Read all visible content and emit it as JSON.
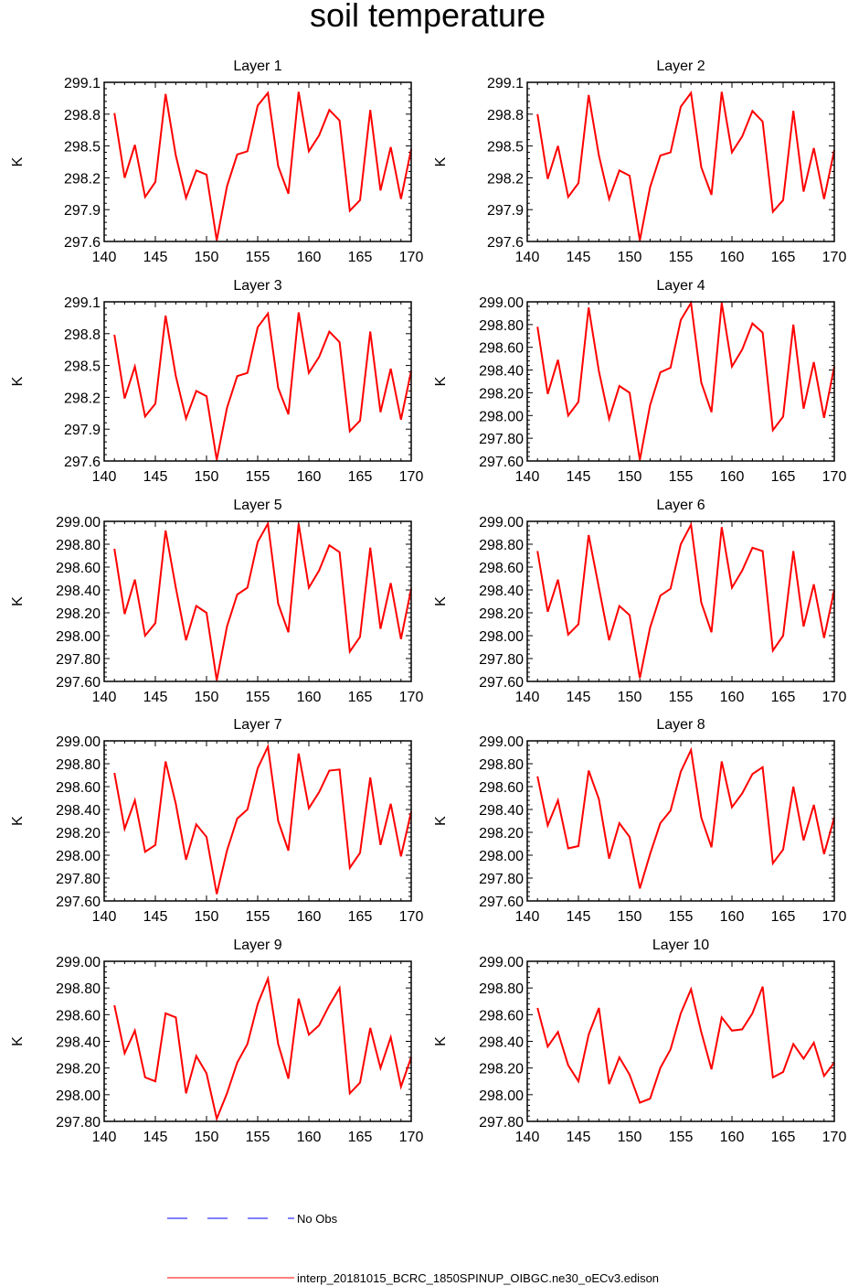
{
  "title": "soil temperature",
  "colors": {
    "model": "#ff0000",
    "obs": "#0000ff",
    "axis": "#000000"
  },
  "legend": {
    "obs_label": "No Obs",
    "model_label": "interp_20181015_BCRC_1850SPINUP_OIBGC.ne30_oECv3.edison"
  },
  "chart_data": [
    {
      "type": "line",
      "title": "Layer 1",
      "ylabel": "K",
      "xlim": [
        140,
        170
      ],
      "ylim": [
        297.6,
        299.1
      ],
      "xticks": [
        140,
        145,
        150,
        155,
        160,
        165,
        170
      ],
      "xtick_labels": [
        "140",
        "145",
        "150",
        "155",
        "160",
        "165",
        "170"
      ],
      "yticks": [
        297.6,
        297.9,
        298.2,
        298.5,
        298.8,
        299.1
      ],
      "ytick_labels": [
        "297.6",
        "297.9",
        "298.2",
        "298.5",
        "298.8",
        "299.1"
      ],
      "x": [
        141,
        142,
        143,
        144,
        145,
        146,
        147,
        148,
        149,
        150,
        151,
        152,
        153,
        154,
        155,
        156,
        157,
        158,
        159,
        160,
        161,
        162,
        163,
        164,
        165,
        166,
        167,
        168,
        169,
        170
      ],
      "series": [
        {
          "name": "interp_20181015_BCRC_1850SPINUP_OIBGC.ne30_oECv3.edison",
          "values": [
            298.81,
            298.2,
            298.51,
            298.02,
            298.16,
            298.99,
            298.41,
            298.01,
            298.27,
            298.23,
            297.61,
            298.12,
            298.42,
            298.45,
            298.88,
            299.0,
            298.31,
            298.05,
            299.01,
            298.45,
            298.6,
            298.84,
            298.74,
            297.89,
            297.99,
            298.84,
            298.08,
            298.49,
            298.0,
            298.47
          ]
        }
      ]
    },
    {
      "type": "line",
      "title": "Layer 2",
      "ylabel": "K",
      "xlim": [
        140,
        170
      ],
      "ylim": [
        297.6,
        299.1
      ],
      "xticks": [
        140,
        145,
        150,
        155,
        160,
        165,
        170
      ],
      "xtick_labels": [
        "140",
        "145",
        "150",
        "155",
        "160",
        "165",
        "170"
      ],
      "yticks": [
        297.6,
        297.9,
        298.2,
        298.5,
        298.8,
        299.1
      ],
      "ytick_labels": [
        "297.6",
        "297.9",
        "298.2",
        "298.5",
        "298.8",
        "299.1"
      ],
      "x": [
        141,
        142,
        143,
        144,
        145,
        146,
        147,
        148,
        149,
        150,
        151,
        152,
        153,
        154,
        155,
        156,
        157,
        158,
        159,
        160,
        161,
        162,
        163,
        164,
        165,
        166,
        167,
        168,
        169,
        170
      ],
      "series": [
        {
          "name": "interp_20181015_BCRC_1850SPINUP_OIBGC.ne30_oECv3.edison",
          "values": [
            298.8,
            298.19,
            298.5,
            298.02,
            298.15,
            298.98,
            298.41,
            298.0,
            298.27,
            298.22,
            297.61,
            298.11,
            298.41,
            298.44,
            298.87,
            299.0,
            298.3,
            298.04,
            299.01,
            298.44,
            298.59,
            298.83,
            298.73,
            297.88,
            297.99,
            298.83,
            298.07,
            298.48,
            298.0,
            298.46
          ]
        }
      ]
    },
    {
      "type": "line",
      "title": "Layer 3",
      "ylabel": "K",
      "xlim": [
        140,
        170
      ],
      "ylim": [
        297.6,
        299.1
      ],
      "xticks": [
        140,
        145,
        150,
        155,
        160,
        165,
        170
      ],
      "xtick_labels": [
        "140",
        "145",
        "150",
        "155",
        "160",
        "165",
        "170"
      ],
      "yticks": [
        297.6,
        297.9,
        298.2,
        298.5,
        298.8,
        299.1
      ],
      "ytick_labels": [
        "297.6",
        "297.9",
        "298.2",
        "298.5",
        "298.8",
        "299.1"
      ],
      "x": [
        141,
        142,
        143,
        144,
        145,
        146,
        147,
        148,
        149,
        150,
        151,
        152,
        153,
        154,
        155,
        156,
        157,
        158,
        159,
        160,
        161,
        162,
        163,
        164,
        165,
        166,
        167,
        168,
        169,
        170
      ],
      "series": [
        {
          "name": "interp_20181015_BCRC_1850SPINUP_OIBGC.ne30_oECv3.edison",
          "values": [
            298.79,
            298.19,
            298.49,
            298.02,
            298.14,
            298.97,
            298.4,
            298.0,
            298.26,
            298.21,
            297.61,
            298.1,
            298.4,
            298.43,
            298.86,
            298.99,
            298.29,
            298.04,
            299.0,
            298.43,
            298.58,
            298.82,
            298.72,
            297.88,
            297.98,
            298.82,
            298.06,
            298.47,
            297.99,
            298.45
          ]
        }
      ]
    },
    {
      "type": "line",
      "title": "Layer 4",
      "ylabel": "K",
      "xlim": [
        140,
        170
      ],
      "ylim": [
        297.6,
        299.0
      ],
      "xticks": [
        140,
        145,
        150,
        155,
        160,
        165,
        170
      ],
      "xtick_labels": [
        "140",
        "145",
        "150",
        "155",
        "160",
        "165",
        "170"
      ],
      "yticks": [
        297.6,
        297.8,
        298.0,
        298.2,
        298.4,
        298.6,
        298.8,
        299.0
      ],
      "ytick_labels": [
        "297.60",
        "297.80",
        "298.00",
        "298.20",
        "298.40",
        "298.60",
        "298.80",
        "299.00"
      ],
      "x": [
        141,
        142,
        143,
        144,
        145,
        146,
        147,
        148,
        149,
        150,
        151,
        152,
        153,
        154,
        155,
        156,
        157,
        158,
        159,
        160,
        161,
        162,
        163,
        164,
        165,
        166,
        167,
        168,
        169,
        170
      ],
      "series": [
        {
          "name": "interp_20181015_BCRC_1850SPINUP_OIBGC.ne30_oECv3.edison",
          "values": [
            298.78,
            298.19,
            298.49,
            298.0,
            298.12,
            298.95,
            298.39,
            297.97,
            298.26,
            298.2,
            297.61,
            298.09,
            298.38,
            298.42,
            298.84,
            298.99,
            298.29,
            298.03,
            298.99,
            298.43,
            298.58,
            298.81,
            298.73,
            297.87,
            297.99,
            298.8,
            298.06,
            298.47,
            297.98,
            298.43
          ]
        }
      ]
    },
    {
      "type": "line",
      "title": "Layer 5",
      "ylabel": "K",
      "xlim": [
        140,
        170
      ],
      "ylim": [
        297.6,
        299.0
      ],
      "xticks": [
        140,
        145,
        150,
        155,
        160,
        165,
        170
      ],
      "xtick_labels": [
        "140",
        "145",
        "150",
        "155",
        "160",
        "165",
        "170"
      ],
      "yticks": [
        297.6,
        297.8,
        298.0,
        298.2,
        298.4,
        298.6,
        298.8,
        299.0
      ],
      "ytick_labels": [
        "297.60",
        "297.80",
        "298.00",
        "298.20",
        "298.40",
        "298.60",
        "298.80",
        "299.00"
      ],
      "x": [
        141,
        142,
        143,
        144,
        145,
        146,
        147,
        148,
        149,
        150,
        151,
        152,
        153,
        154,
        155,
        156,
        157,
        158,
        159,
        160,
        161,
        162,
        163,
        164,
        165,
        166,
        167,
        168,
        169,
        170
      ],
      "series": [
        {
          "name": "interp_20181015_BCRC_1850SPINUP_OIBGC.ne30_oECv3.edison",
          "values": [
            298.76,
            298.19,
            298.49,
            298.0,
            298.11,
            298.92,
            298.42,
            297.96,
            298.26,
            298.2,
            297.61,
            298.08,
            298.36,
            298.42,
            298.82,
            298.98,
            298.28,
            298.03,
            298.98,
            298.42,
            298.57,
            298.79,
            298.73,
            297.86,
            297.99,
            298.77,
            298.06,
            298.46,
            297.97,
            298.41
          ]
        }
      ]
    },
    {
      "type": "line",
      "title": "Layer 6",
      "ylabel": "K",
      "xlim": [
        140,
        170
      ],
      "ylim": [
        297.6,
        299.0
      ],
      "xticks": [
        140,
        145,
        150,
        155,
        160,
        165,
        170
      ],
      "xtick_labels": [
        "140",
        "145",
        "150",
        "155",
        "160",
        "165",
        "170"
      ],
      "yticks": [
        297.6,
        297.8,
        298.0,
        298.2,
        298.4,
        298.6,
        298.8,
        299.0
      ],
      "ytick_labels": [
        "297.60",
        "297.80",
        "298.00",
        "298.20",
        "298.40",
        "298.60",
        "298.80",
        "299.00"
      ],
      "x": [
        141,
        142,
        143,
        144,
        145,
        146,
        147,
        148,
        149,
        150,
        151,
        152,
        153,
        154,
        155,
        156,
        157,
        158,
        159,
        160,
        161,
        162,
        163,
        164,
        165,
        166,
        167,
        168,
        169,
        170
      ],
      "series": [
        {
          "name": "interp_20181015_BCRC_1850SPINUP_OIBGC.ne30_oECv3.edison",
          "values": [
            298.74,
            298.21,
            298.49,
            298.01,
            298.1,
            298.88,
            298.42,
            297.96,
            298.26,
            298.18,
            297.63,
            298.07,
            298.35,
            298.41,
            298.8,
            298.97,
            298.29,
            298.03,
            298.95,
            298.42,
            298.57,
            298.77,
            298.74,
            297.87,
            298.0,
            298.74,
            298.08,
            298.45,
            297.98,
            298.4
          ]
        }
      ]
    },
    {
      "type": "line",
      "title": "Layer 7",
      "ylabel": "K",
      "xlim": [
        140,
        170
      ],
      "ylim": [
        297.6,
        299.0
      ],
      "xticks": [
        140,
        145,
        150,
        155,
        160,
        165,
        170
      ],
      "xtick_labels": [
        "140",
        "145",
        "150",
        "155",
        "160",
        "165",
        "170"
      ],
      "yticks": [
        297.6,
        297.8,
        298.0,
        298.2,
        298.4,
        298.6,
        298.8,
        299.0
      ],
      "ytick_labels": [
        "297.60",
        "297.80",
        "298.00",
        "298.20",
        "298.40",
        "298.60",
        "298.80",
        "299.00"
      ],
      "x": [
        141,
        142,
        143,
        144,
        145,
        146,
        147,
        148,
        149,
        150,
        151,
        152,
        153,
        154,
        155,
        156,
        157,
        158,
        159,
        160,
        161,
        162,
        163,
        164,
        165,
        166,
        167,
        168,
        169,
        170
      ],
      "series": [
        {
          "name": "interp_20181015_BCRC_1850SPINUP_OIBGC.ne30_oECv3.edison",
          "values": [
            298.72,
            298.23,
            298.48,
            298.03,
            298.09,
            298.82,
            298.45,
            297.96,
            298.27,
            298.16,
            297.66,
            298.04,
            298.32,
            298.4,
            298.76,
            298.95,
            298.3,
            298.04,
            298.89,
            298.41,
            298.55,
            298.74,
            298.75,
            297.89,
            298.02,
            298.68,
            298.09,
            298.45,
            297.99,
            298.38
          ]
        }
      ]
    },
    {
      "type": "line",
      "title": "Layer 8",
      "ylabel": "K",
      "xlim": [
        140,
        170
      ],
      "ylim": [
        297.6,
        299.0
      ],
      "xticks": [
        140,
        145,
        150,
        155,
        160,
        165,
        170
      ],
      "xtick_labels": [
        "140",
        "145",
        "150",
        "155",
        "160",
        "165",
        "170"
      ],
      "yticks": [
        297.6,
        297.8,
        298.0,
        298.2,
        298.4,
        298.6,
        298.8,
        299.0
      ],
      "ytick_labels": [
        "297.60",
        "297.80",
        "298.00",
        "298.20",
        "298.40",
        "298.60",
        "298.80",
        "299.00"
      ],
      "x": [
        141,
        142,
        143,
        144,
        145,
        146,
        147,
        148,
        149,
        150,
        151,
        152,
        153,
        154,
        155,
        156,
        157,
        158,
        159,
        160,
        161,
        162,
        163,
        164,
        165,
        166,
        167,
        168,
        169,
        170
      ],
      "series": [
        {
          "name": "interp_20181015_BCRC_1850SPINUP_OIBGC.ne30_oECv3.edison",
          "values": [
            298.69,
            298.26,
            298.48,
            298.06,
            298.08,
            298.74,
            298.49,
            297.97,
            298.28,
            298.16,
            297.71,
            298.01,
            298.28,
            298.39,
            298.73,
            298.92,
            298.33,
            298.07,
            298.82,
            298.42,
            298.54,
            298.71,
            298.77,
            297.93,
            298.05,
            298.6,
            298.13,
            298.44,
            298.01,
            298.33
          ]
        }
      ]
    },
    {
      "type": "line",
      "title": "Layer 9",
      "ylabel": "K",
      "xlim": [
        140,
        170
      ],
      "ylim": [
        297.8,
        299.0
      ],
      "xticks": [
        140,
        145,
        150,
        155,
        160,
        165,
        170
      ],
      "xtick_labels": [
        "140",
        "145",
        "150",
        "155",
        "160",
        "165",
        "170"
      ],
      "yticks": [
        297.8,
        298.0,
        298.2,
        298.4,
        298.6,
        298.8,
        299.0
      ],
      "ytick_labels": [
        "297.80",
        "298.00",
        "298.20",
        "298.40",
        "298.60",
        "298.80",
        "299.00"
      ],
      "x": [
        141,
        142,
        143,
        144,
        145,
        146,
        147,
        148,
        149,
        150,
        151,
        152,
        153,
        154,
        155,
        156,
        157,
        158,
        159,
        160,
        161,
        162,
        163,
        164,
        165,
        166,
        167,
        168,
        169,
        170
      ],
      "series": [
        {
          "name": "interp_20181015_BCRC_1850SPINUP_OIBGC.ne30_oECv3.edison",
          "values": [
            298.67,
            298.31,
            298.48,
            298.13,
            298.1,
            298.61,
            298.58,
            298.01,
            298.29,
            298.16,
            297.82,
            298.01,
            298.24,
            298.38,
            298.68,
            298.87,
            298.38,
            298.12,
            298.72,
            298.45,
            298.52,
            298.67,
            298.8,
            298.01,
            298.09,
            298.5,
            298.2,
            298.43,
            298.06,
            298.28
          ]
        }
      ]
    },
    {
      "type": "line",
      "title": "Layer 10",
      "ylabel": "K",
      "xlim": [
        140,
        170
      ],
      "ylim": [
        297.8,
        299.0
      ],
      "xticks": [
        140,
        145,
        150,
        155,
        160,
        165,
        170
      ],
      "xtick_labels": [
        "140",
        "145",
        "150",
        "155",
        "160",
        "165",
        "170"
      ],
      "yticks": [
        297.8,
        298.0,
        298.2,
        298.4,
        298.6,
        298.8,
        299.0
      ],
      "ytick_labels": [
        "297.80",
        "298.00",
        "298.20",
        "298.40",
        "298.60",
        "298.80",
        "299.00"
      ],
      "x": [
        141,
        142,
        143,
        144,
        145,
        146,
        147,
        148,
        149,
        150,
        151,
        152,
        153,
        154,
        155,
        156,
        157,
        158,
        159,
        160,
        161,
        162,
        163,
        164,
        165,
        166,
        167,
        168,
        169,
        170
      ],
      "series": [
        {
          "name": "interp_20181015_BCRC_1850SPINUP_OIBGC.ne30_oECv3.edison",
          "values": [
            298.65,
            298.36,
            298.47,
            298.22,
            298.1,
            298.45,
            298.65,
            298.08,
            298.28,
            298.15,
            297.94,
            297.97,
            298.2,
            298.34,
            298.61,
            298.79,
            298.47,
            298.19,
            298.58,
            298.48,
            298.49,
            298.61,
            298.81,
            298.13,
            298.17,
            298.38,
            298.27,
            298.39,
            298.14,
            298.24
          ]
        }
      ]
    }
  ]
}
